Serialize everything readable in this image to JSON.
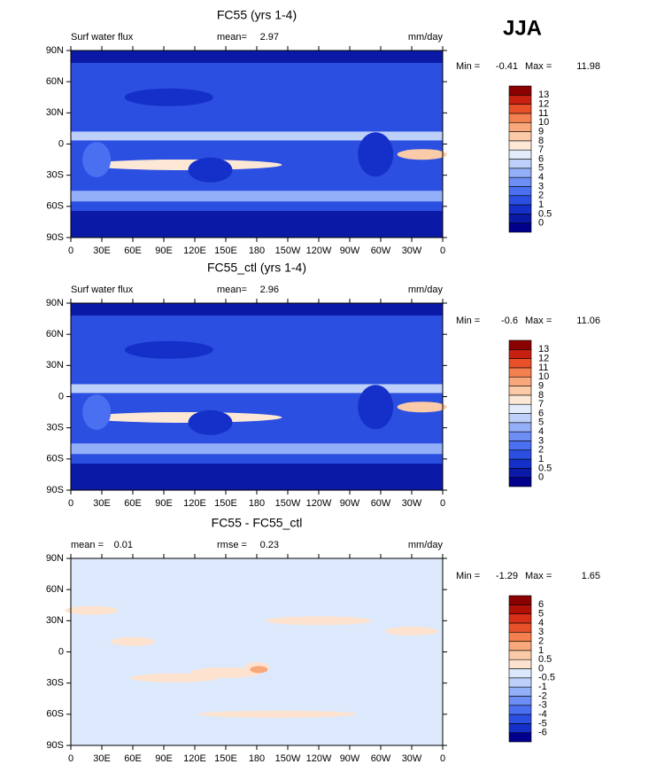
{
  "heading": "JJA",
  "chart_data": [
    {
      "type": "map",
      "title": "FC55 (yrs 1-4)",
      "subtitle": "Surf water flux",
      "stats": [
        {
          "name": "mean=",
          "value": 2.97
        }
      ],
      "units": "mm/day",
      "min_label": "Min =",
      "min": -0.41,
      "max_label": "Max =",
      "max": 11.98,
      "xlim": [
        0,
        360
      ],
      "xticks": [
        0,
        {
          "value": 30,
          "label": "30E"
        },
        {
          "value": 60,
          "label": "60E"
        },
        {
          "value": 90,
          "label": "90E"
        },
        {
          "value": 120,
          "label": "120E"
        },
        {
          "value": 150,
          "label": "150E"
        },
        180,
        {
          "value": 210,
          "label": "150W"
        },
        {
          "value": 240,
          "label": "120W"
        },
        {
          "value": 270,
          "label": "90W"
        },
        {
          "value": 300,
          "label": "60W"
        },
        {
          "value": 330,
          "label": "30W"
        },
        {
          "value": 360,
          "label": "0"
        }
      ],
      "ylim": [
        -90,
        90
      ],
      "yticks": [
        {
          "value": 90,
          "label": "90N"
        },
        {
          "value": 60,
          "label": "60N"
        },
        {
          "value": 30,
          "label": "30N"
        },
        0,
        {
          "value": -30,
          "label": "30S"
        },
        {
          "value": -60,
          "label": "60S"
        },
        {
          "value": -90,
          "label": "90S"
        }
      ],
      "levels": [
        0,
        0.5,
        1,
        2,
        3,
        4,
        5,
        6,
        7,
        8,
        9,
        10,
        11,
        12,
        13
      ],
      "colors": [
        "#00008b",
        "#0b1aa6",
        "#1530c8",
        "#2b4fe0",
        "#4a6ff0",
        "#6d8ff5",
        "#93aff8",
        "#bcd0fa",
        "#e3ecfb",
        "#fde8d6",
        "#fbcaa8",
        "#f8a87a",
        "#f4804f",
        "#e8502a",
        "#c82010",
        "#8b0000"
      ]
    },
    {
      "type": "map",
      "title": "FC55_ctl (yrs 1-4)",
      "subtitle": "Surf water flux",
      "stats": [
        {
          "name": "mean=",
          "value": 2.96
        }
      ],
      "units": "mm/day",
      "min_label": "Min =",
      "min": -0.6,
      "max_label": "Max =",
      "max": 11.06,
      "xlim": [
        0,
        360
      ],
      "xticks": [
        0,
        {
          "value": 30,
          "label": "30E"
        },
        {
          "value": 60,
          "label": "60E"
        },
        {
          "value": 90,
          "label": "90E"
        },
        {
          "value": 120,
          "label": "120E"
        },
        {
          "value": 150,
          "label": "150E"
        },
        180,
        {
          "value": 210,
          "label": "150W"
        },
        {
          "value": 240,
          "label": "120W"
        },
        {
          "value": 270,
          "label": "90W"
        },
        {
          "value": 300,
          "label": "60W"
        },
        {
          "value": 330,
          "label": "30W"
        },
        {
          "value": 360,
          "label": "0"
        }
      ],
      "ylim": [
        -90,
        90
      ],
      "yticks": [
        {
          "value": 90,
          "label": "90N"
        },
        {
          "value": 60,
          "label": "60N"
        },
        {
          "value": 30,
          "label": "30N"
        },
        0,
        {
          "value": -30,
          "label": "30S"
        },
        {
          "value": -60,
          "label": "60S"
        },
        {
          "value": -90,
          "label": "90S"
        }
      ],
      "levels": [
        0,
        0.5,
        1,
        2,
        3,
        4,
        5,
        6,
        7,
        8,
        9,
        10,
        11,
        12,
        13
      ],
      "colors": [
        "#00008b",
        "#0b1aa6",
        "#1530c8",
        "#2b4fe0",
        "#4a6ff0",
        "#6d8ff5",
        "#93aff8",
        "#bcd0fa",
        "#e3ecfb",
        "#fde8d6",
        "#fbcaa8",
        "#f8a87a",
        "#f4804f",
        "#e8502a",
        "#c82010",
        "#8b0000"
      ]
    },
    {
      "type": "map",
      "title": "FC55 - FC55_ctl",
      "stats": [
        {
          "name": "mean =",
          "value": 0.01
        },
        {
          "name": "rmse =",
          "value": 0.23
        }
      ],
      "units": "mm/day",
      "min_label": "Min =",
      "min": -1.29,
      "max_label": "Max =",
      "max": 1.65,
      "xlim": [
        0,
        360
      ],
      "xticks": [
        0,
        {
          "value": 30,
          "label": "30E"
        },
        {
          "value": 60,
          "label": "60E"
        },
        {
          "value": 90,
          "label": "90E"
        },
        {
          "value": 120,
          "label": "120E"
        },
        {
          "value": 150,
          "label": "150E"
        },
        180,
        {
          "value": 210,
          "label": "150W"
        },
        {
          "value": 240,
          "label": "120W"
        },
        {
          "value": 270,
          "label": "90W"
        },
        {
          "value": 300,
          "label": "60W"
        },
        {
          "value": 330,
          "label": "30W"
        },
        {
          "value": 360,
          "label": "0"
        }
      ],
      "ylim": [
        -90,
        90
      ],
      "yticks": [
        {
          "value": 90,
          "label": "90N"
        },
        {
          "value": 60,
          "label": "60N"
        },
        {
          "value": 30,
          "label": "30N"
        },
        0,
        {
          "value": -30,
          "label": "30S"
        },
        {
          "value": -60,
          "label": "60S"
        },
        {
          "value": -90,
          "label": "90S"
        }
      ],
      "levels": [
        -6,
        -5,
        -4,
        -3,
        -2,
        -1,
        -0.5,
        0,
        0.5,
        1,
        2,
        3,
        4,
        5,
        6
      ],
      "colors": [
        "#00008b",
        "#1530c8",
        "#2b4fe0",
        "#4a6ff0",
        "#6d8ff5",
        "#93aff8",
        "#bcd0fa",
        "#dce8fb",
        "#fde3cf",
        "#fbcaa8",
        "#f8a87a",
        "#f4804f",
        "#e8502a",
        "#d83018",
        "#b01008",
        "#8b0000"
      ]
    }
  ]
}
